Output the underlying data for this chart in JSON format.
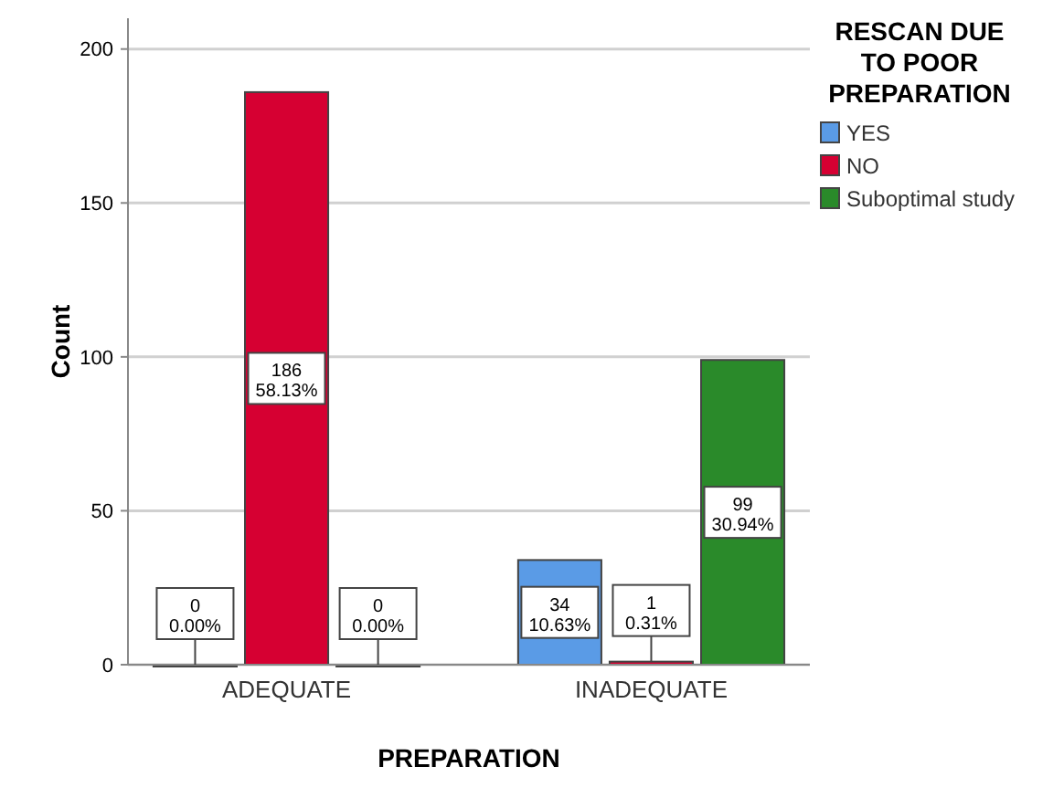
{
  "chart_data": {
    "type": "bar",
    "xlabel": "PREPARATION",
    "ylabel": "Count",
    "legend_title": "RESCAN DUE TO POOR PREPARATION",
    "categories": [
      "ADEQUATE",
      "INADEQUATE"
    ],
    "series": [
      {
        "name": "YES",
        "color": "#5a9be6",
        "values": [
          0,
          34
        ],
        "value_labels": [
          "0\n0.00%",
          "34\n10.63%"
        ]
      },
      {
        "name": "NO",
        "color": "#d60032",
        "values": [
          186,
          1
        ],
        "value_labels": [
          "186\n58.13%",
          "1\n0.31%"
        ]
      },
      {
        "name": "Suboptimal study",
        "color": "#2a8a2a",
        "values": [
          0,
          99
        ],
        "value_labels": [
          "0\n0.00%",
          "99\n30.94%"
        ]
      }
    ],
    "ylim": [
      0,
      210
    ],
    "yticks": [
      0,
      50,
      100,
      150,
      200
    ],
    "grid": "y",
    "legend": "top right"
  }
}
